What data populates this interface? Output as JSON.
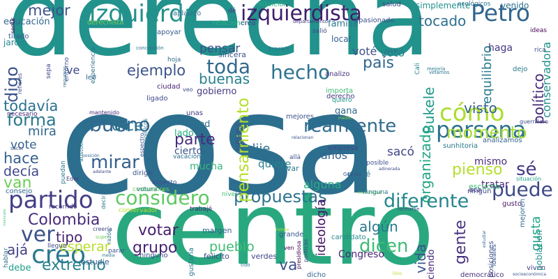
{
  "words": [
    {
      "text": "cosa",
      "color": "#2c6e8e"
    },
    {
      "text": "derecha",
      "color": "#22928c"
    },
    {
      "text": "centro",
      "color": "#29a87f"
    },
    {
      "text": "izquierdista",
      "color": "#3f1f6b"
    },
    {
      "text": "izquierda",
      "color": "#21918c"
    },
    {
      "text": "persona",
      "color": "#2c728e"
    },
    {
      "text": "Petro",
      "color": "#31668e"
    },
    {
      "text": "partido",
      "color": "#433e85"
    },
    {
      "text": "considero",
      "color": "#5ec962"
    },
    {
      "text": "creo",
      "color": "#2a788e"
    },
    {
      "text": "ver",
      "color": "#3b518b"
    },
    {
      "text": "Colombia",
      "color": "#472a7a"
    },
    {
      "text": "cómo",
      "color": "#addc30"
    },
    {
      "text": "momento",
      "color": "#a5db36"
    },
    {
      "text": "realmente",
      "color": "#2f6b8e"
    },
    {
      "text": "puede",
      "color": "#3e4a89"
    },
    {
      "text": "hecho",
      "color": "#2c728e"
    },
    {
      "text": "diferente",
      "color": "#24868e"
    },
    {
      "text": "propuestas",
      "color": "#2c728e"
    },
    {
      "text": "pensamiento",
      "color": "#b5de2b"
    },
    {
      "text": "bueno",
      "color": "#31688e"
    },
    {
      "text": "mirar",
      "color": "#34618d"
    },
    {
      "text": "parte",
      "color": "#472d7b"
    },
    {
      "text": "toda",
      "color": "#31688e"
    },
    {
      "text": "extremo",
      "color": "#26828e"
    },
    {
      "text": "votar",
      "color": "#481d6f"
    },
    {
      "text": "forma",
      "color": "#2a778e"
    },
    {
      "text": "dicen",
      "color": "#3dbc74"
    },
    {
      "text": "grupo",
      "color": "#482475"
    },
    {
      "text": "mejor",
      "color": "#3b528b"
    },
    {
      "text": "Bukele",
      "color": "#1f998a"
    },
    {
      "text": "país",
      "color": "#31668e"
    },
    {
      "text": "digo",
      "color": "#3b528b"
    },
    {
      "text": "ejemplo",
      "color": "#3b528b"
    },
    {
      "text": "buenas",
      "color": "#277f8e"
    },
    {
      "text": "dice",
      "color": "#2c728e"
    },
    {
      "text": "organizado",
      "color": "#21a685"
    },
    {
      "text": "político",
      "color": "#482878"
    },
    {
      "text": "pienso",
      "color": "#b5de2b"
    },
    {
      "text": "sé",
      "color": "#443983"
    },
    {
      "text": "visto",
      "color": "#34618d"
    },
    {
      "text": "tocado",
      "color": "#2d708e"
    },
    {
      "text": "gente",
      "color": "#46327e"
    },
    {
      "text": "va",
      "color": "#3b528b"
    },
    {
      "text": "todavía",
      "color": "#2c728e"
    },
    {
      "text": "algún",
      "color": "#2a788e"
    },
    {
      "text": "hace",
      "color": "#355f8d"
    },
    {
      "text": "decía",
      "color": "#3f4788"
    },
    {
      "text": "van",
      "color": "#6ece58"
    },
    {
      "text": "tipo",
      "color": "#482374"
    },
    {
      "text": "ideología",
      "color": "#471164"
    },
    {
      "text": "vida",
      "color": "#3b528b"
    },
    {
      "text": "equilibrio",
      "color": "#287c8e"
    },
    {
      "text": "conservadora",
      "color": "#21918c"
    },
    {
      "text": "pueblo",
      "color": "#3fbc73"
    },
    {
      "text": "esperar",
      "color": "#b8de29"
    },
    {
      "text": "ajá",
      "color": "#424086"
    },
    {
      "text": "gusta",
      "color": "#20a486"
    },
    {
      "text": "votó",
      "color": "#277f8e"
    },
    {
      "text": "voté",
      "color": "#3b528b"
    },
    {
      "text": "pensar",
      "color": "#3b528b"
    },
    {
      "text": "dije",
      "color": "#2d708e"
    },
    {
      "text": "mira",
      "color": "#31688e"
    },
    {
      "text": "vote",
      "color": "#34618d"
    },
    {
      "text": "haga",
      "color": "#453781"
    },
    {
      "text": "ve",
      "color": "#3f4788"
    },
    {
      "text": "sacó",
      "color": "#404588"
    },
    {
      "text": "años",
      "color": "#33638d"
    },
    {
      "text": "quiere",
      "color": "#26828e"
    },
    {
      "text": "alguna",
      "color": "#27ad81"
    },
    {
      "text": "tratar",
      "color": "#472a7a"
    },
    {
      "text": "mismo",
      "color": "#472d7b"
    },
    {
      "text": "hablar",
      "color": "#2d708e"
    },
    {
      "text": "educación",
      "color": "#31688e"
    },
    {
      "text": "veces",
      "color": "#3b528b"
    },
    {
      "text": "mucha",
      "color": "#35b779"
    },
    {
      "text": "cierto",
      "color": "#3b528b"
    },
    {
      "text": "usted",
      "color": "#2c728e"
    },
    {
      "text": "lado",
      "color": "#27ad81"
    },
    {
      "text": "gobierno",
      "color": "#443983"
    },
    {
      "text": "Congreso",
      "color": "#482777"
    },
    {
      "text": "haciendo",
      "color": "#482677"
    },
    {
      "text": "gana",
      "color": "#31688e"
    },
    {
      "text": "familia",
      "color": "#2a788e"
    },
    {
      "text": "jardín",
      "color": "#24868e"
    },
    {
      "text": "debe",
      "color": "#1fa088"
    },
    {
      "text": "local",
      "color": "#355e8d"
    },
    {
      "text": "salud",
      "color": "#3f4788"
    },
    {
      "text": "venido",
      "color": "#2d708e"
    },
    {
      "text": "simplemente",
      "color": "#21918c"
    },
    {
      "text": "apasionado",
      "color": "#3b528b"
    },
    {
      "text": "ecológicos",
      "color": "#2c728e"
    },
    {
      "text": "intuición",
      "color": "#29af7f"
    },
    {
      "text": "ideas",
      "color": "#440154"
    },
    {
      "text": "mantenido",
      "color": "#482878"
    },
    {
      "text": "llevar",
      "color": "#2a778e"
    },
    {
      "text": "pensé",
      "color": "#2c728e"
    },
    {
      "text": "posible",
      "color": "#3b528b"
    },
    {
      "text": "escucho",
      "color": "#3dbc74"
    },
    {
      "text": "ningún",
      "color": "#3f4788"
    },
    {
      "text": "gusto",
      "color": "#481467"
    },
    {
      "text": "aca",
      "color": "#453882"
    },
    {
      "text": "margen",
      "color": "#33638d"
    },
    {
      "text": "grande",
      "color": "#38588c"
    },
    {
      "text": "dicho",
      "color": "#32658e"
    },
    {
      "text": "verdes",
      "color": "#3f4788"
    },
    {
      "text": "estudie",
      "color": "#34618d"
    },
    {
      "text": "felicito",
      "color": "#3f4788"
    },
    {
      "text": "ninguno",
      "color": "#3e4c8a"
    },
    {
      "text": "viven",
      "color": "#443a83"
    },
    {
      "text": "posiciones",
      "color": "#3b528b"
    },
    {
      "text": "población",
      "color": "#21918c"
    },
    {
      "text": "mejoren",
      "color": "#31688e"
    },
    {
      "text": "ideales",
      "color": "#3b528b"
    },
    {
      "text": "democrático",
      "color": "#472c7a"
    },
    {
      "text": "gustaría",
      "color": "#2a778e"
    },
    {
      "text": "apoyar",
      "color": "#375a8c"
    },
    {
      "text": "aplaudo",
      "color": "#2c728e"
    },
    {
      "text": "relacionen",
      "color": "#29af7f"
    },
    {
      "text": "derechista",
      "color": "#6ece58"
    },
    {
      "text": "crea",
      "color": "#3e4a89"
    },
    {
      "text": "sincera",
      "color": "#39558c"
    },
    {
      "text": "hoja",
      "color": "#2d708e"
    },
    {
      "text": "experiencia",
      "color": "#2c728e"
    },
    {
      "text": "entorno",
      "color": "#3b528b"
    },
    {
      "text": "sepa",
      "color": "#404588"
    },
    {
      "text": "tirado",
      "color": "#39568c"
    },
    {
      "text": "refieres",
      "color": "#3b528b"
    },
    {
      "text": "sentir",
      "color": "#440154"
    },
    {
      "text": "leo",
      "color": "#31688e"
    },
    {
      "text": "ciudad",
      "color": "#482374"
    },
    {
      "text": "veo",
      "color": "#3e4989"
    },
    {
      "text": "Cali",
      "color": "#26828e"
    },
    {
      "text": "dejo",
      "color": "#2a778e"
    },
    {
      "text": "rica",
      "color": "#3b528b"
    },
    {
      "text": "analizo",
      "color": "#46327e"
    },
    {
      "text": "derecho",
      "color": "#443983"
    },
    {
      "text": "importa",
      "color": "#3dbc74"
    },
    {
      "text": "quiero",
      "color": "#1f958b"
    },
    {
      "text": "ligado",
      "color": "#3e4a89"
    },
    {
      "text": "unas",
      "color": "#453781"
    },
    {
      "text": "mejores",
      "color": "#3b528b"
    },
    {
      "text": "medio",
      "color": "#8fd744"
    },
    {
      "text": "empresa",
      "color": "#3f4788"
    },
    {
      "text": "allá",
      "color": "#3b528b"
    },
    {
      "text": "sunhitoria",
      "color": "#2a788e"
    },
    {
      "text": "analizamos",
      "color": "#355f8d"
    },
    {
      "text": "guerrillero",
      "color": "#3e4a89"
    },
    {
      "text": "necesario",
      "color": "#472c7a"
    },
    {
      "text": "sacar",
      "color": "#3b528b"
    },
    {
      "text": "consejo",
      "color": "#31688e"
    },
    {
      "text": "recorrido",
      "color": "#453882"
    },
    {
      "text": "Eder",
      "color": "#433d84"
    },
    {
      "text": "costumbres",
      "color": "#6ece58"
    },
    {
      "text": "dirigir",
      "color": "#3b528b"
    },
    {
      "text": "vacaciones",
      "color": "#2c728e"
    },
    {
      "text": "aspecto",
      "color": "#3b528b"
    },
    {
      "text": "votura",
      "color": "#2a778e"
    },
    {
      "text": "nivel",
      "color": "#3dbc74"
    },
    {
      "text": "llegue",
      "color": "#3e4a89"
    },
    {
      "text": "parar",
      "color": "#3b528b"
    },
    {
      "text": "trabajé",
      "color": "#482878"
    },
    {
      "text": "candidato",
      "color": "#24868e"
    },
    {
      "text": "ven",
      "color": "#440154"
    },
    {
      "text": "políticas",
      "color": "#3e4a89"
    },
    {
      "text": "presidiosa",
      "color": "#440154"
    },
    {
      "text": "situación",
      "color": "#1fa088"
    },
    {
      "text": "conservador",
      "color": "#b8de29"
    },
    {
      "text": "creería",
      "color": "#3f4788"
    },
    {
      "text": "super",
      "color": "#6ece58"
    },
    {
      "text": "media",
      "color": "#2a778e"
    },
    {
      "text": "tido",
      "color": "#2a778e"
    },
    {
      "text": "Gracias",
      "color": "#3b528b"
    },
    {
      "text": "relacionan",
      "color": "#3b528b"
    },
    {
      "text": "adinerada",
      "color": "#3e4989"
    },
    {
      "text": "posición",
      "color": "#31688e"
    },
    {
      "text": "adelante",
      "color": "#3e4a89"
    },
    {
      "text": "recursos",
      "color": "#31688e"
    },
    {
      "text": "concepción",
      "color": "#2c728e"
    },
    {
      "text": "principio",
      "color": "#2c728e"
    },
    {
      "text": "pulso",
      "color": "#2c728e"
    },
    {
      "text": "velamos",
      "color": "#2a778e"
    },
    {
      "text": "departamento",
      "color": "#443983"
    },
    {
      "text": "dé",
      "color": "#443983"
    },
    {
      "text": "salió",
      "color": "#3f4788"
    },
    {
      "text": "aristocracia",
      "color": "#2a778e"
    },
    {
      "text": "apolíticos",
      "color": "#2c728e"
    },
    {
      "text": "espectro",
      "color": "#3b528b"
    },
    {
      "text": "puedan",
      "color": "#2a778e"
    },
    {
      "text": "decir",
      "color": "#2a788e"
    },
    {
      "text": "razón",
      "color": "#2c728e"
    },
    {
      "text": "formarse",
      "color": "#3b528b"
    },
    {
      "text": "comunidad",
      "color": "#6ece58"
    },
    {
      "text": "Dios",
      "color": "#b8de29"
    },
    {
      "text": "socioeconómica",
      "color": "#3b528b"
    },
    {
      "text": "estudiar",
      "color": "#31688e"
    },
    {
      "text": "municipio",
      "color": "#3dbc74"
    },
    {
      "text": "rompo",
      "color": "#b8de29"
    },
    {
      "text": "mejoría",
      "color": "#2a778e"
    },
    {
      "text": "ninguna",
      "color": "#2a778e"
    }
  ]
}
